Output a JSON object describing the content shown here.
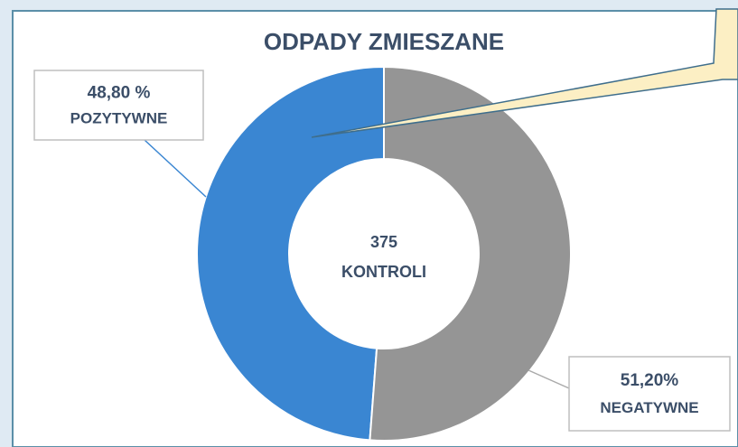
{
  "chart_data": {
    "type": "donut",
    "title": "ODPADY ZMIESZANE",
    "categories": [
      "POZYTYWNE",
      "NEGATYWNE"
    ],
    "values": [
      48.8,
      51.2
    ],
    "value_labels": [
      "48,80 %",
      "51,20%"
    ],
    "colors": [
      "#3a86d2",
      "#959595"
    ],
    "center_text": [
      "375",
      "KONTROLI"
    ]
  }
}
